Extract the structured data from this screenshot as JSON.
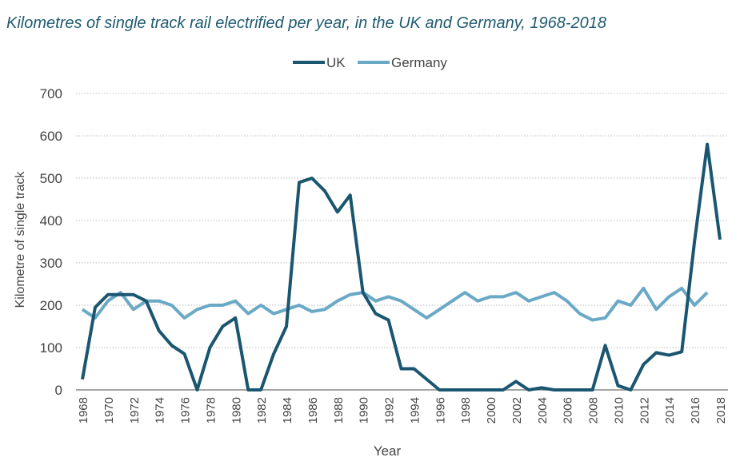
{
  "chart_data": {
    "type": "line",
    "title": "Kilometres of single track rail electrified per year, in the UK and Germany, 1968-2018",
    "xlabel": "Year",
    "ylabel": "Kilometre of single track",
    "ylim": [
      0,
      700
    ],
    "yticks": [
      "0",
      "100",
      "200",
      "300",
      "400",
      "500",
      "600",
      "700"
    ],
    "xlim": [
      1968,
      2018
    ],
    "xticks": [
      "1968",
      "1970",
      "1972",
      "1974",
      "1976",
      "1978",
      "1980",
      "1982",
      "1984",
      "1986",
      "1988",
      "1990",
      "1992",
      "1994",
      "1996",
      "1998",
      "2000",
      "2002",
      "2004",
      "2006",
      "2008",
      "2010",
      "2012",
      "2014",
      "2016",
      "2018"
    ],
    "grid": "horizontal dotted",
    "legend_position": "top-center",
    "series": [
      {
        "name": "UK",
        "color": "#1a5670",
        "start": 1968,
        "values": [
          25,
          195,
          225,
          225,
          225,
          210,
          140,
          105,
          85,
          0,
          100,
          150,
          170,
          0,
          0,
          85,
          150,
          490,
          500,
          470,
          420,
          460,
          230,
          180,
          165,
          50,
          50,
          25,
          0,
          0,
          0,
          0,
          0,
          0,
          20,
          0,
          5,
          0,
          0,
          0,
          0,
          105,
          10,
          0,
          60,
          88,
          82,
          90,
          350,
          580,
          355
        ]
      },
      {
        "name": "Germany",
        "color": "#6aa9c6",
        "start": 1968,
        "values": [
          190,
          170,
          210,
          230,
          190,
          210,
          210,
          200,
          170,
          190,
          200,
          200,
          210,
          180,
          200,
          180,
          190,
          200,
          185,
          190,
          210,
          225,
          230,
          210,
          220,
          210,
          190,
          170,
          190,
          210,
          230,
          210,
          220,
          220,
          230,
          210,
          220,
          230,
          210,
          180,
          165,
          170,
          210,
          200,
          240,
          190,
          220,
          240,
          200,
          230
        ]
      }
    ]
  }
}
